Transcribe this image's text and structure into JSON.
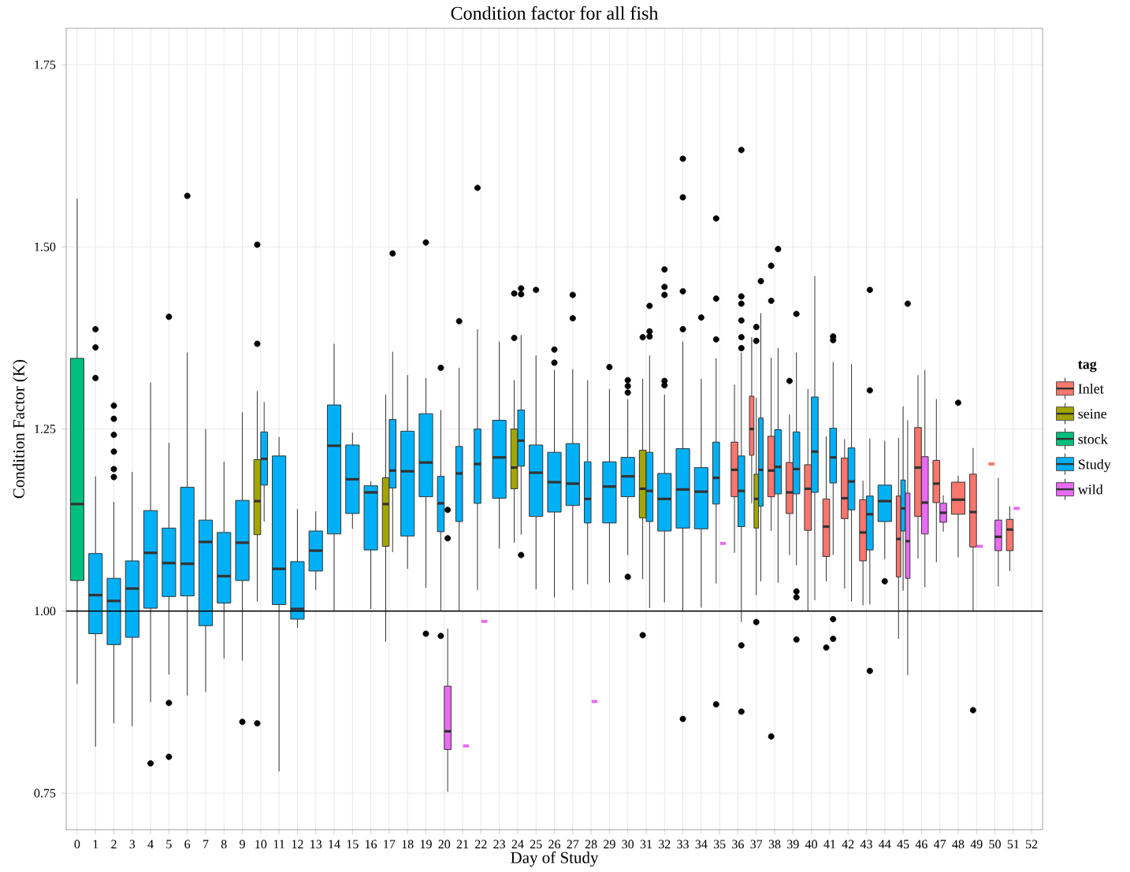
{
  "chart_data": {
    "type": "box",
    "title": "Condition factor for all fish",
    "xlabel": "Day of Study",
    "ylabel": "Condition Factor (K)",
    "legend_title": "tag",
    "categories": [
      "0",
      "1",
      "2",
      "3",
      "4",
      "5",
      "6",
      "7",
      "8",
      "9",
      "10",
      "11",
      "12",
      "13",
      "14",
      "15",
      "16",
      "17",
      "18",
      "19",
      "20",
      "21",
      "22",
      "23",
      "24",
      "25",
      "26",
      "27",
      "28",
      "29",
      "30",
      "31",
      "32",
      "33",
      "34",
      "35",
      "36",
      "37",
      "38",
      "39",
      "40",
      "41",
      "42",
      "43",
      "44",
      "45",
      "46",
      "47",
      "48",
      "49",
      "50",
      "51",
      "52"
    ],
    "ylim": [
      0.7,
      1.8
    ],
    "yticks": [
      0.75,
      {
        "value": 1,
        "label": "1.00"
      },
      1.25,
      {
        "value": 1.5,
        "label": "1.50"
      },
      1.75
    ],
    "grid": true,
    "legend": "right",
    "ref_lines": [
      {
        "axis": "y",
        "value": 1
      }
    ],
    "series": [
      {
        "name": "Inlet",
        "color": "#f8766d",
        "boxes": [
          null,
          null,
          null,
          null,
          null,
          null,
          null,
          null,
          null,
          null,
          null,
          null,
          null,
          null,
          null,
          null,
          null,
          null,
          null,
          null,
          null,
          null,
          null,
          null,
          null,
          null,
          null,
          null,
          null,
          null,
          null,
          null,
          null,
          null,
          null,
          null,
          {
            "low": 1.08,
            "q1": 1.157,
            "median": 1.194,
            "q3": 1.232,
            "high": 1.311
          },
          {
            "low": 1.148,
            "q1": 1.214,
            "median": 1.25,
            "q3": 1.295,
            "high": 1.376
          },
          {
            "low": 1.11,
            "q1": 1.157,
            "median": 1.193,
            "q3": 1.24,
            "high": 1.348,
            "outliers": [
              1.474,
              1.426,
              0.828
            ]
          },
          {
            "low": 1.077,
            "q1": 1.134,
            "median": 1.163,
            "q3": 1.204,
            "high": 1.27,
            "outliers": [
              1.316
            ]
          },
          {
            "low": 1.0,
            "q1": 1.111,
            "median": 1.168,
            "q3": 1.201,
            "high": 1.305
          },
          {
            "low": 1.041,
            "q1": 1.075,
            "median": 1.116,
            "q3": 1.154,
            "high": 1.24,
            "outliers": [
              0.95
            ]
          },
          {
            "low": 1.031,
            "q1": 1.127,
            "median": 1.155,
            "q3": 1.21,
            "high": 1.236
          },
          {
            "low": 1.008,
            "q1": 1.069,
            "median": 1.108,
            "q3": 1.153,
            "high": 1.179
          },
          null,
          {
            "low": 0.962,
            "q1": 1.047,
            "median": 1.099,
            "q3": 1.158,
            "high": 1.238
          },
          {
            "low": 1.072,
            "q1": 1.13,
            "median": 1.197,
            "q3": 1.252,
            "high": 1.324
          },
          {
            "low": 1.067,
            "q1": 1.149,
            "median": 1.175,
            "q3": 1.207,
            "high": 1.291
          },
          {
            "low": 1.074,
            "q1": 1.133,
            "median": 1.153,
            "q3": 1.177,
            "high": 1.186,
            "outliers": [
              1.286
            ]
          },
          {
            "low": 1.0,
            "q1": 1.088,
            "median": 1.136,
            "q3": 1.188,
            "high": 1.224,
            "outliers": [
              0.864
            ]
          },
          {
            "low": 1.202,
            "q1": 1.202,
            "median": 1.202,
            "q3": 1.202,
            "high": 1.202
          },
          {
            "low": 1.055,
            "q1": 1.083,
            "median": 1.112,
            "q3": 1.126,
            "high": 1.144
          },
          null
        ]
      },
      {
        "name": "seine",
        "color": "#a3a500",
        "boxes": [
          null,
          null,
          null,
          null,
          null,
          null,
          null,
          null,
          null,
          null,
          {
            "low": 1.013,
            "q1": 1.105,
            "median": 1.151,
            "q3": 1.208,
            "high": 1.302,
            "outliers": [
              1.503,
              1.367,
              0.846
            ]
          },
          null,
          null,
          null,
          null,
          null,
          null,
          {
            "low": 0.958,
            "q1": 1.089,
            "median": 1.147,
            "q3": 1.183,
            "high": 1.297
          },
          null,
          null,
          null,
          null,
          null,
          null,
          {
            "low": 1.094,
            "q1": 1.168,
            "median": 1.197,
            "q3": 1.25,
            "high": 1.317,
            "outliers": [
              1.436,
              1.375
            ]
          },
          null,
          null,
          null,
          null,
          null,
          null,
          {
            "low": 1.044,
            "q1": 1.128,
            "median": 1.168,
            "q3": 1.221,
            "high": 1.319,
            "outliers": [
              1.376,
              0.967
            ]
          },
          null,
          null,
          null,
          null,
          null,
          {
            "low": 1.022,
            "q1": 1.114,
            "median": 1.154,
            "q3": 1.188,
            "high": 1.293,
            "outliers": [
              1.39,
              1.371,
              0.985
            ]
          },
          null,
          null,
          null,
          null,
          null,
          null,
          null,
          null,
          null,
          null,
          null,
          null,
          null,
          null,
          null
        ]
      },
      {
        "name": "stock",
        "color": "#00bf7d",
        "boxes": [
          {
            "low": 0.9,
            "q1": 1.042,
            "median": 1.147,
            "q3": 1.347,
            "high": 1.566
          },
          null,
          null,
          null,
          null,
          null,
          null,
          null,
          null,
          null,
          null,
          null,
          null,
          null,
          null,
          null,
          null,
          null,
          null,
          null,
          null,
          null,
          null,
          null,
          null,
          null,
          null,
          null,
          null,
          null,
          null,
          null,
          null,
          null,
          null,
          null,
          null,
          null,
          null,
          null,
          null,
          null,
          null,
          null,
          null,
          null,
          null,
          null,
          null,
          null,
          null,
          null,
          null
        ]
      },
      {
        "name": "Study",
        "color": "#00b0f6",
        "boxes": [
          null,
          {
            "low": 0.814,
            "q1": 0.969,
            "median": 1.022,
            "q3": 1.079,
            "high": 1.185,
            "outliers": [
              1.387,
              1.362,
              1.32
            ]
          },
          {
            "low": 0.846,
            "q1": 0.954,
            "median": 1.014,
            "q3": 1.045,
            "high": 1.15,
            "outliers": [
              1.282,
              1.264,
              1.242,
              1.219,
              1.195,
              1.184
            ]
          },
          {
            "low": 0.842,
            "q1": 0.964,
            "median": 1.031,
            "q3": 1.069,
            "high": 1.191
          },
          {
            "low": 0.875,
            "q1": 1.004,
            "median": 1.08,
            "q3": 1.138,
            "high": 1.314,
            "outliers": [
              0.791
            ]
          },
          {
            "low": 0.913,
            "q1": 1.02,
            "median": 1.066,
            "q3": 1.114,
            "high": 1.231,
            "outliers": [
              1.404,
              0.874,
              0.8
            ]
          },
          {
            "low": 0.884,
            "q1": 1.021,
            "median": 1.065,
            "q3": 1.17,
            "high": 1.355,
            "outliers": [
              1.57
            ]
          },
          {
            "low": 0.889,
            "q1": 0.98,
            "median": 1.095,
            "q3": 1.125,
            "high": 1.25
          },
          {
            "low": 0.935,
            "q1": 1.011,
            "median": 1.048,
            "q3": 1.108,
            "high": 1.205
          },
          {
            "low": 0.932,
            "q1": 1.042,
            "median": 1.094,
            "q3": 1.152,
            "high": 1.273,
            "outliers": [
              0.848
            ]
          },
          {
            "low": 1.123,
            "q1": 1.173,
            "median": 1.209,
            "q3": 1.246,
            "high": 1.287
          },
          {
            "low": 0.78,
            "q1": 1.009,
            "median": 1.058,
            "q3": 1.213,
            "high": 1.239
          },
          {
            "low": 0.977,
            "q1": 0.989,
            "median": 1.003,
            "q3": 1.068,
            "high": 1.14
          },
          {
            "low": 1.029,
            "q1": 1.055,
            "median": 1.083,
            "q3": 1.11,
            "high": 1.137
          },
          {
            "low": 1.0,
            "q1": 1.106,
            "median": 1.227,
            "q3": 1.283,
            "high": 1.367
          },
          {
            "low": 1.113,
            "q1": 1.134,
            "median": 1.181,
            "q3": 1.228,
            "high": 1.245
          },
          {
            "low": 1.003,
            "q1": 1.084,
            "median": 1.163,
            "q3": 1.172,
            "high": 1.178
          },
          {
            "low": 1.081,
            "q1": 1.169,
            "median": 1.193,
            "q3": 1.263,
            "high": 1.356,
            "outliers": [
              1.491
            ]
          },
          {
            "low": 1.058,
            "q1": 1.103,
            "median": 1.192,
            "q3": 1.247,
            "high": 1.324
          },
          {
            "low": 1.032,
            "q1": 1.157,
            "median": 1.204,
            "q3": 1.271,
            "high": 1.32,
            "outliers": [
              1.506,
              0.969
            ]
          },
          {
            "low": 1.001,
            "q1": 1.109,
            "median": 1.148,
            "q3": 1.185,
            "high": 1.276,
            "outliers": [
              1.334,
              0.966
            ]
          },
          {
            "low": 1.0,
            "q1": 1.123,
            "median": 1.189,
            "q3": 1.226,
            "high": 1.334,
            "outliers": [
              1.398
            ]
          },
          {
            "low": 1.029,
            "q1": 1.148,
            "median": 1.202,
            "q3": 1.25,
            "high": 1.387,
            "outliers": [
              1.581
            ]
          },
          {
            "low": 1.086,
            "q1": 1.155,
            "median": 1.211,
            "q3": 1.262,
            "high": 1.37
          },
          {
            "low": 1.105,
            "q1": 1.199,
            "median": 1.234,
            "q3": 1.276,
            "high": 1.379,
            "outliers": [
              1.443,
              1.435,
              1.077
            ]
          },
          {
            "low": 1.03,
            "q1": 1.13,
            "median": 1.19,
            "q3": 1.228,
            "high": 1.351,
            "outliers": [
              1.441
            ]
          },
          {
            "low": 1.019,
            "q1": 1.136,
            "median": 1.177,
            "q3": 1.218,
            "high": 1.331,
            "outliers": [
              1.359,
              1.341
            ]
          },
          {
            "low": 1.029,
            "q1": 1.145,
            "median": 1.175,
            "q3": 1.23,
            "high": 1.332,
            "outliers": [
              1.434,
              1.402
            ]
          },
          {
            "low": 1.037,
            "q1": 1.121,
            "median": 1.154,
            "q3": 1.205,
            "high": 1.317
          },
          {
            "low": 1.039,
            "q1": 1.121,
            "median": 1.171,
            "q3": 1.205,
            "high": 1.305,
            "outliers": [
              1.335
            ]
          },
          {
            "low": 1.077,
            "q1": 1.157,
            "median": 1.185,
            "q3": 1.211,
            "high": 1.291,
            "outliers": [
              1.317,
              1.309,
              1.3,
              1.047
            ]
          },
          {
            "low": 1.004,
            "q1": 1.123,
            "median": 1.165,
            "q3": 1.218,
            "high": 1.351,
            "outliers": [
              1.419,
              1.384,
              1.377
            ]
          },
          {
            "low": 1.012,
            "q1": 1.11,
            "median": 1.154,
            "q3": 1.189,
            "high": 1.297,
            "outliers": [
              1.469,
              1.445,
              1.434,
              1.316,
              1.31
            ]
          },
          {
            "low": 1.0,
            "q1": 1.114,
            "median": 1.167,
            "q3": 1.223,
            "high": 1.37,
            "outliers": [
              1.621,
              1.568,
              1.439,
              1.387,
              0.852
            ]
          },
          {
            "low": 1.005,
            "q1": 1.113,
            "median": 1.164,
            "q3": 1.197,
            "high": 1.319,
            "outliers": [
              1.403
            ]
          },
          {
            "low": 1.038,
            "q1": 1.147,
            "median": 1.183,
            "q3": 1.232,
            "high": 1.347,
            "outliers": [
              1.539,
              1.429,
              1.373,
              0.872
            ]
          },
          {
            "low": 0.985,
            "q1": 1.116,
            "median": 1.165,
            "q3": 1.213,
            "high": 1.355,
            "outliers": [
              1.633,
              1.432,
              1.422,
              1.399,
              1.376,
              1.361,
              0.953,
              0.862
            ]
          },
          {
            "low": 1.041,
            "q1": 1.144,
            "median": 1.194,
            "q3": 1.265,
            "high": 1.409,
            "outliers": [
              1.453
            ]
          },
          {
            "low": 1.039,
            "q1": 1.161,
            "median": 1.198,
            "q3": 1.249,
            "high": 1.361,
            "outliers": [
              1.497
            ]
          },
          {
            "low": 1.063,
            "q1": 1.161,
            "median": 1.195,
            "q3": 1.246,
            "high": 1.355,
            "outliers": [
              1.408,
              1.027,
              1.019,
              0.961
            ]
          },
          {
            "low": 1.015,
            "q1": 1.163,
            "median": 1.219,
            "q3": 1.294,
            "high": 1.46
          },
          {
            "low": 1.077,
            "q1": 1.176,
            "median": 1.211,
            "q3": 1.251,
            "high": 1.342,
            "outliers": [
              1.377,
              1.372,
              0.989,
              0.962
            ]
          },
          {
            "low": 1.013,
            "q1": 1.139,
            "median": 1.178,
            "q3": 1.224,
            "high": 1.339
          },
          {
            "low": 1.009,
            "q1": 1.084,
            "median": 1.133,
            "q3": 1.158,
            "high": 1.237,
            "outliers": [
              1.441,
              1.303,
              0.918
            ]
          },
          {
            "low": 1.071,
            "q1": 1.123,
            "median": 1.151,
            "q3": 1.173,
            "high": 1.234,
            "outliers": [
              1.041
            ]
          },
          {
            "low": 1.028,
            "q1": 1.11,
            "median": 1.141,
            "q3": 1.18,
            "high": 1.281
          },
          null,
          null,
          null,
          null,
          null,
          null,
          null
        ]
      },
      {
        "name": "wild",
        "color": "#e76bf3",
        "boxes": [
          null,
          null,
          null,
          null,
          null,
          null,
          null,
          null,
          null,
          null,
          null,
          null,
          null,
          null,
          null,
          null,
          null,
          null,
          null,
          null,
          {
            "low": 0.752,
            "q1": 0.81,
            "median": 0.835,
            "q3": 0.897,
            "high": 0.976,
            "outliers": [
              1.139,
              1.1
            ]
          },
          {
            "low": 0.815,
            "q1": 0.815,
            "median": 0.815,
            "q3": 0.815,
            "high": 0.815
          },
          {
            "low": 0.986,
            "q1": 0.986,
            "median": 0.986,
            "q3": 0.986,
            "high": 0.986
          },
          null,
          null,
          null,
          null,
          null,
          {
            "low": 0.876,
            "q1": 0.876,
            "median": 0.876,
            "q3": 0.876,
            "high": 0.876
          },
          null,
          null,
          null,
          null,
          null,
          null,
          {
            "low": 1.093,
            "q1": 1.093,
            "median": 1.093,
            "q3": 1.093,
            "high": 1.093
          },
          null,
          null,
          null,
          null,
          null,
          null,
          null,
          null,
          null,
          {
            "low": 0.912,
            "q1": 1.045,
            "median": 1.096,
            "q3": 1.162,
            "high": 1.262,
            "outliers": [
              1.422
            ]
          },
          {
            "low": 1.033,
            "q1": 1.106,
            "median": 1.149,
            "q3": 1.212,
            "high": 1.331
          },
          {
            "low": 1.109,
            "q1": 1.122,
            "median": 1.135,
            "q3": 1.148,
            "high": 1.159
          },
          null,
          {
            "low": 1.089,
            "q1": 1.089,
            "median": 1.089,
            "q3": 1.089,
            "high": 1.089
          },
          {
            "low": 1.034,
            "q1": 1.083,
            "median": 1.102,
            "q3": 1.125,
            "high": 1.183
          },
          {
            "low": 1.141,
            "q1": 1.141,
            "median": 1.141,
            "q3": 1.141,
            "high": 1.141
          },
          null
        ]
      }
    ]
  }
}
